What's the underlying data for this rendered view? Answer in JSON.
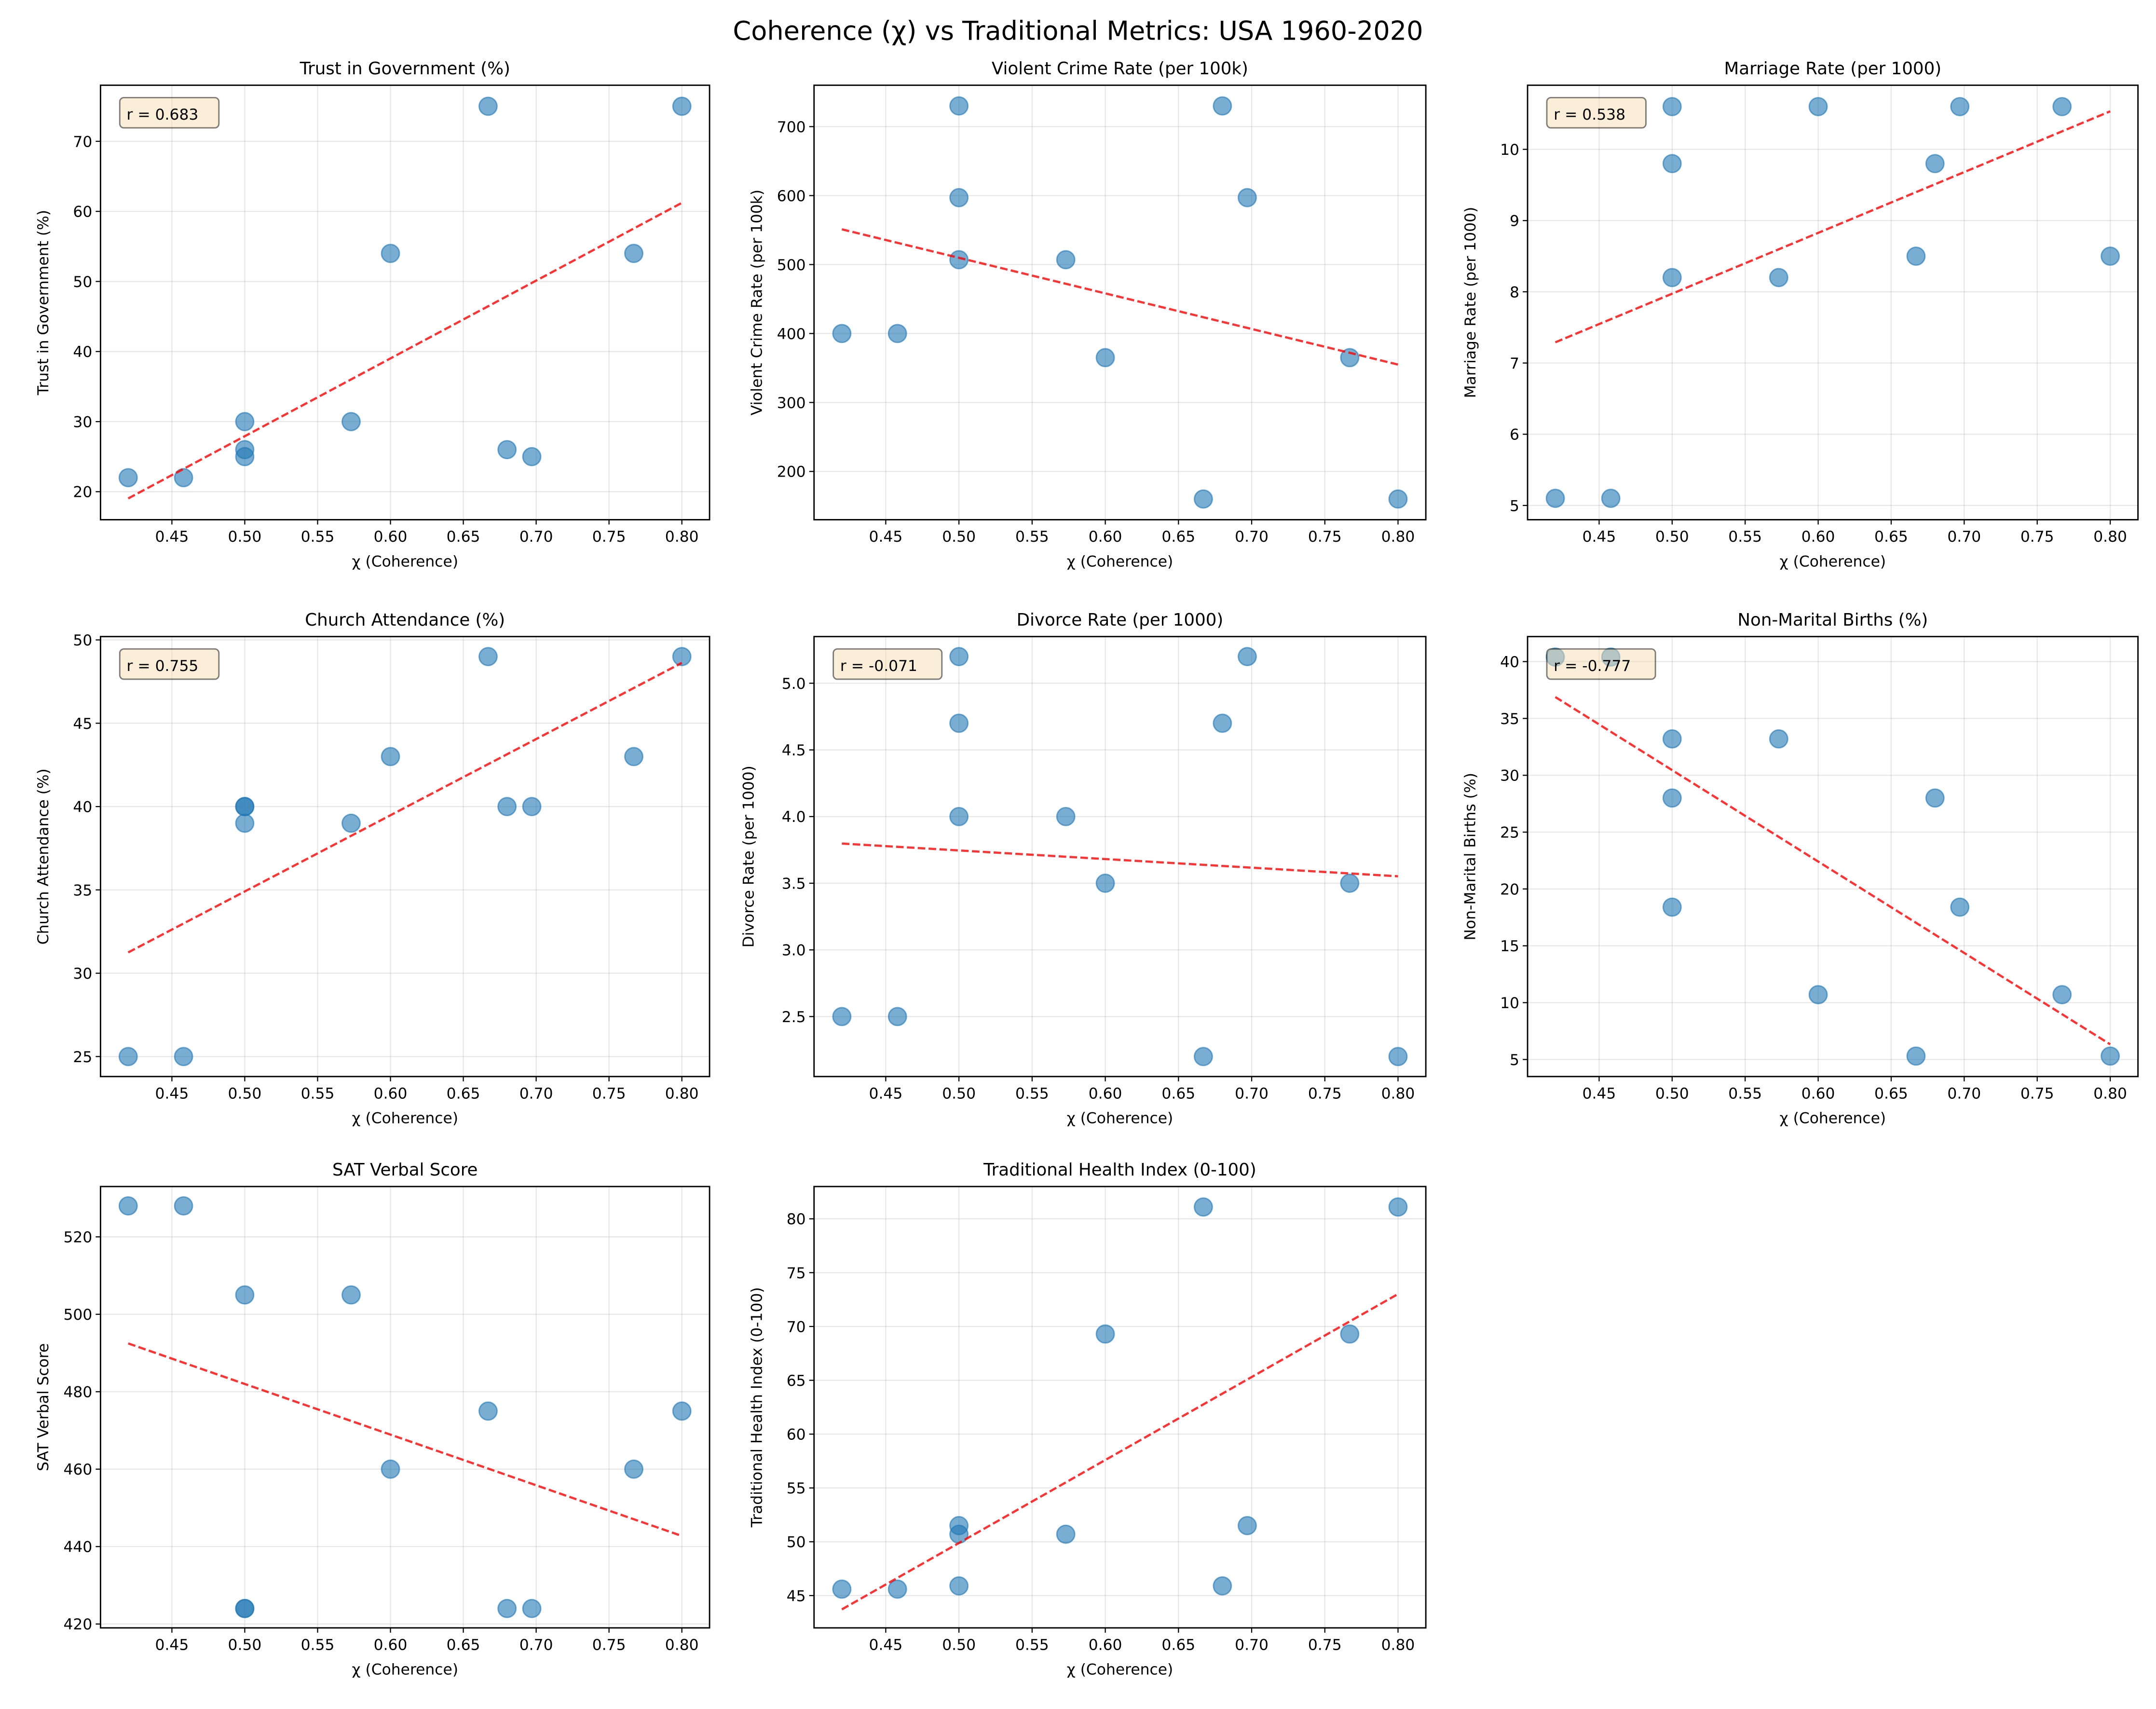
{
  "chart_data": {
    "title": "Coherence (χ) vs Traditional Metrics: USA 1960-2020",
    "x_values": [
      0.42,
      0.458,
      0.5,
      0.5,
      0.5,
      0.573,
      0.6,
      0.667,
      0.68,
      0.697,
      0.767,
      0.8
    ],
    "xlabel": "χ (Coherence)",
    "xlim": [
      0.401,
      0.819
    ],
    "xticks": [
      0.45,
      0.5,
      0.55,
      0.6,
      0.65,
      0.7,
      0.75,
      0.8
    ],
    "grid": true,
    "point_color": "#1f77b4",
    "trend_color": "#ff0000",
    "panels": [
      {
        "type": "scatter",
        "title": "Trust in Government (%)",
        "ylabel": "Trust in Government (%)",
        "r_label": "r = 0.683",
        "ylim": [
          16,
          78
        ],
        "yticks": [
          20,
          30,
          40,
          50,
          60,
          70
        ],
        "y": [
          22,
          22,
          30,
          26,
          25,
          30,
          54,
          75,
          26,
          25,
          54,
          75
        ]
      },
      {
        "type": "scatter",
        "title": "Violent Crime Rate (per 100k)",
        "ylabel": "Violent Crime Rate (per 100k)",
        "r_label": "",
        "ylim": [
          130,
          760
        ],
        "yticks": [
          200,
          300,
          400,
          500,
          600,
          700
        ],
        "y": [
          400,
          400,
          507,
          730,
          597,
          507,
          365,
          160,
          730,
          597,
          365,
          160
        ]
      },
      {
        "type": "scatter",
        "title": "Marriage Rate (per 1000)",
        "ylabel": "Marriage Rate (per 1000)",
        "r_label": "r = 0.538",
        "ylim": [
          4.8,
          10.9
        ],
        "yticks": [
          5,
          6,
          7,
          8,
          9,
          10
        ],
        "y": [
          5.1,
          5.1,
          8.2,
          9.8,
          10.6,
          8.2,
          10.6,
          8.5,
          9.8,
          10.6,
          10.6,
          8.5
        ]
      },
      {
        "type": "scatter",
        "title": "Church Attendance (%)",
        "ylabel": "Church Attendance (%)",
        "r_label": "r = 0.755",
        "ylim": [
          23.8,
          50.2
        ],
        "yticks": [
          25,
          30,
          35,
          40,
          45,
          50
        ],
        "y": [
          25,
          25,
          39,
          40,
          40,
          39,
          43,
          49,
          40,
          40,
          43,
          49
        ]
      },
      {
        "type": "scatter",
        "title": "Divorce Rate (per 1000)",
        "ylabel": "Divorce Rate (per 1000)",
        "r_label": "r = -0.071",
        "ylim": [
          2.05,
          5.35
        ],
        "yticks": [
          2.5,
          3.0,
          3.5,
          4.0,
          4.5,
          5.0
        ],
        "y": [
          2.5,
          2.5,
          4.0,
          4.7,
          5.2,
          4.0,
          3.5,
          2.2,
          4.7,
          5.2,
          3.5,
          2.2
        ]
      },
      {
        "type": "scatter",
        "title": "Non-Marital Births (%)",
        "ylabel": "Non-Marital Births (%)",
        "r_label": "r = -0.777",
        "ylim": [
          3.5,
          42.2
        ],
        "yticks": [
          5,
          10,
          15,
          20,
          25,
          30,
          35,
          40
        ],
        "y": [
          40.4,
          40.4,
          33.2,
          28.0,
          18.4,
          33.2,
          10.7,
          5.3,
          28.0,
          18.4,
          10.7,
          5.3
        ]
      },
      {
        "type": "scatter",
        "title": "SAT Verbal Score",
        "ylabel": "SAT Verbal Score",
        "r_label": "",
        "ylim": [
          419,
          533
        ],
        "yticks": [
          420,
          440,
          460,
          480,
          500,
          520
        ],
        "y": [
          528,
          528,
          505,
          424,
          424,
          505,
          460,
          475,
          424,
          424,
          460,
          475
        ]
      },
      {
        "type": "scatter",
        "title": "Traditional Health Index (0-100)",
        "ylabel": "Traditional Health Index (0-100)",
        "r_label": "",
        "ylim": [
          42,
          83
        ],
        "yticks": [
          45,
          50,
          55,
          60,
          65,
          70,
          75,
          80
        ],
        "y": [
          45.6,
          45.6,
          50.7,
          45.9,
          51.5,
          50.7,
          69.3,
          81.1,
          45.9,
          51.5,
          69.3,
          81.1
        ]
      }
    ]
  }
}
